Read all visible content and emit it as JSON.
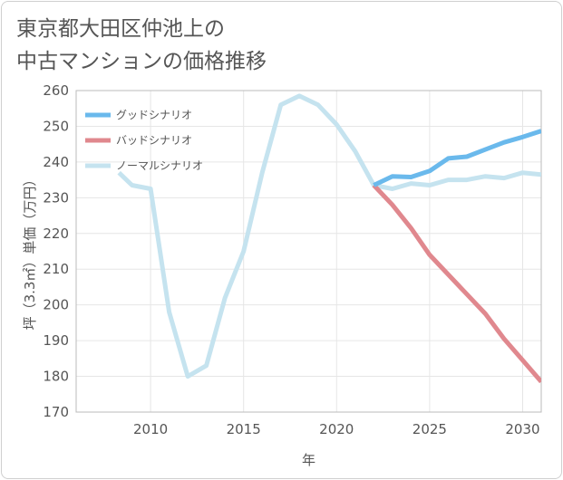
{
  "title_lines": [
    "東京都大田区仲池上の",
    "中古マンションの価格推移"
  ],
  "chart_data": {
    "type": "line",
    "title": "東京都大田区仲池上の中古マンションの価格推移",
    "xlabel": "年",
    "ylabel": "坪（3.3㎡）単価（万円）",
    "xlim": [
      2006,
      2031
    ],
    "ylim": [
      170,
      260
    ],
    "xticks": [
      2010,
      2015,
      2020,
      2025,
      2030
    ],
    "yticks": [
      170,
      180,
      190,
      200,
      210,
      220,
      230,
      240,
      250,
      260
    ],
    "legend_position": "top-left",
    "series": [
      {
        "name": "ノーマルシナリオ",
        "color": "#c5e3ef",
        "x": [
          2008.3,
          2009,
          2010,
          2011,
          2012,
          2013,
          2014,
          2015,
          2016,
          2017,
          2018,
          2019,
          2020,
          2021,
          2022,
          2023,
          2024,
          2025,
          2026,
          2027,
          2028,
          2029,
          2030,
          2031
        ],
        "values": [
          237,
          233.5,
          232.5,
          198,
          180,
          183,
          202,
          215,
          237,
          256,
          258.5,
          256,
          250.5,
          243,
          233.5,
          232.5,
          234,
          233.5,
          235,
          235,
          236,
          235.5,
          237,
          236.5
        ]
      },
      {
        "name": "バッドシナリオ",
        "color": "#e0888e",
        "x": [
          2022,
          2023,
          2024,
          2025,
          2026,
          2027,
          2028,
          2029,
          2030,
          2031
        ],
        "values": [
          233.5,
          228,
          221.5,
          214,
          208.5,
          203,
          197.5,
          190.5,
          184.5,
          178.5
        ]
      },
      {
        "name": "グッドシナリオ",
        "color": "#6ab9ec",
        "x": [
          2022,
          2023,
          2024,
          2025,
          2026,
          2027,
          2028,
          2029,
          2030,
          2031
        ],
        "values": [
          233.5,
          236,
          235.8,
          237.5,
          241,
          241.5,
          243.5,
          245.5,
          247,
          248.7
        ]
      }
    ],
    "legend_order": [
      "グッドシナリオ",
      "バッドシナリオ",
      "ノーマルシナリオ"
    ]
  }
}
